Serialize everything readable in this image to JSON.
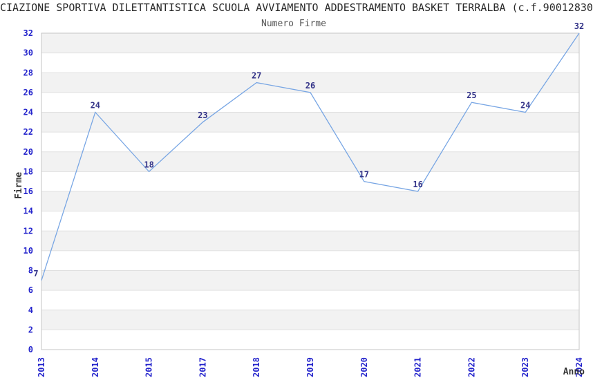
{
  "title": "CIAZIONE SPORTIVA DILETTANTISTICA SCUOLA AVVIAMENTO ADDESTRAMENTO BASKET TERRALBA (c.f.90012830",
  "subtitle": "Numero Firme",
  "chart_data": {
    "type": "line",
    "title": "Numero Firme",
    "categories": [
      "2013",
      "2014",
      "2015",
      "2017",
      "2018",
      "2019",
      "2020",
      "2021",
      "2022",
      "2023",
      "2024"
    ],
    "values": [
      7,
      24,
      18,
      23,
      27,
      26,
      17,
      16,
      25,
      24,
      32
    ],
    "xlabel": "Anno",
    "ylabel": "Firme",
    "ylim": [
      0,
      32
    ],
    "ytick_step": 2,
    "legend": "none",
    "grid": "horizontal-bands-alternating",
    "colors": {
      "line": "#78a6e4",
      "tick_labels": "#2424cc",
      "data_labels": "#333388",
      "band_gray": "#f2f2f2",
      "band_white": "#ffffff",
      "gridline": "#e0e0e0",
      "spine": "#c6c6c6",
      "axis_titles": "#333333"
    }
  }
}
